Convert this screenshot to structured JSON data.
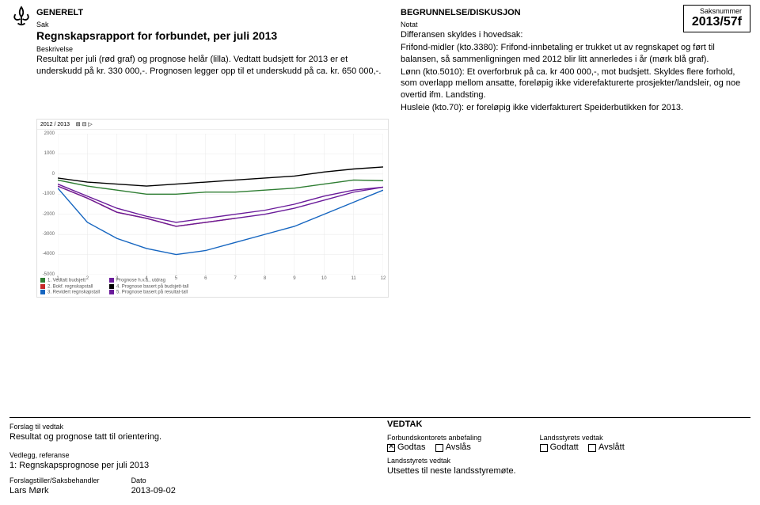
{
  "case": {
    "label": "Saksnummer",
    "number": "2013/57f"
  },
  "left": {
    "section": "GENERELT",
    "sak_label": "Sak",
    "title": "Regnskapsrapport for forbundet, per juli 2013",
    "beskrivelse_label": "Beskrivelse",
    "beskrivelse": "Resultat per juli (rød graf) og prognose helår (lilla). Vedtatt budsjett for 2013 er et underskudd på kr. 330 000,-. Prognosen legger opp til et underskudd på ca. kr. 650 000,-."
  },
  "right": {
    "section": "BEGRUNNELSE/DISKUSJON",
    "notat_label": "Notat",
    "para1": "Differansen skyldes i hovedsak:",
    "para2": "Frifond-midler (kto.3380): Frifond-innbetaling er trukket ut av regnskapet og ført til balansen, så sammenligningen med 2012 blir litt annerledes i år (mørk blå graf).",
    "para3": "Lønn (kto.5010): Et overforbruk på ca. kr 400 000,-, mot budsjett. Skyldes flere forhold, som overlapp mellom ansatte, foreløpig ikke viderefakturerte prosjekter/landsleir, og noe overtid ifm. Landsting.",
    "para4": "Husleie (kto.70): er foreløpig ikke viderfakturert Speiderbutikken for 2013."
  },
  "chart": {
    "type": "line",
    "header_left": "2012 / 2013",
    "header_ctrl": "⊞ ⊟ ▷",
    "x": [
      1,
      2,
      3,
      4,
      5,
      6,
      7,
      8,
      9,
      10,
      11,
      12
    ],
    "ylim": [
      -5000,
      2000
    ],
    "ytick_step": 1000,
    "grid_color": "#e8e8e8",
    "background_color": "#ffffff",
    "series": [
      {
        "name": "1. Vedtatt budsjett",
        "color": "#2e7d32",
        "values": [
          -300,
          -600,
          -800,
          -1000,
          -1000,
          -900,
          -900,
          -800,
          -700,
          -500,
          -300,
          -330
        ]
      },
      {
        "name": "2. Bokf. regnskapstall",
        "color": "#c62828",
        "values": [
          -600,
          -1200,
          -1900,
          -2200,
          -2600,
          -2400,
          -2200,
          null,
          null,
          null,
          null,
          null
        ]
      },
      {
        "name": "3. Revidert regnskapstall",
        "color": "#1565c0",
        "values": [
          -700,
          -2400,
          -3200,
          -3700,
          -4000,
          -3800,
          -3400,
          -3000,
          -2600,
          -2000,
          -1400,
          -800
        ]
      },
      {
        "name": "Prognose h.v.a., utdrag",
        "color": "#6a1b9a",
        "values": [
          -600,
          -1200,
          -1900,
          -2200,
          -2600,
          -2400,
          -2200,
          -2000,
          -1700,
          -1300,
          -900,
          -650
        ]
      },
      {
        "name": "4. Prognose basert på budsjett-tall",
        "color": "#000000",
        "values": [
          -200,
          -400,
          -500,
          -600,
          -500,
          -400,
          -300,
          -200,
          -100,
          100,
          250,
          350
        ]
      },
      {
        "name": "5. Prognose basert på resultat-tall",
        "color": "#6a1b9a",
        "values": [
          -500,
          -1100,
          -1700,
          -2100,
          -2400,
          -2200,
          -2000,
          -1800,
          -1500,
          -1100,
          -800,
          -650
        ]
      }
    ],
    "legend_cols": [
      [
        "1. Vedtatt budsjett",
        "2. Bokf. regnskapstall",
        "3. Revidert regnskapstall"
      ],
      [
        "Prognose h.v.a., utdrag",
        "4. Prognose basert på budsjett-tall",
        "5. Prognose basert på resultat-tall"
      ]
    ],
    "axis_fontsize": 6,
    "line_width": 1.4
  },
  "footer": {
    "forslag_label": "Forslag til vedtak",
    "forslag": "Resultat og prognose tatt til orientering.",
    "vedtak_label": "VEDTAK",
    "forbund_label": "Forbundskontorets anbefaling",
    "godtas": "Godtas",
    "avslas": "Avslås",
    "ls_vedtak_label": "Landsstyrets vedtak",
    "godtatt": "Godtatt",
    "avslatt": "Avslått",
    "utsettes": "Utsettes til neste landsstyremøte.",
    "vedlegg_label": "Vedlegg, referanse",
    "vedlegg": "1: Regnskapsprognose per juli 2013",
    "fs_label": "Forslagstiller/Saksbehandler",
    "fs": "Lars Mørk",
    "dato_label": "Dato",
    "dato": "2013-09-02"
  }
}
